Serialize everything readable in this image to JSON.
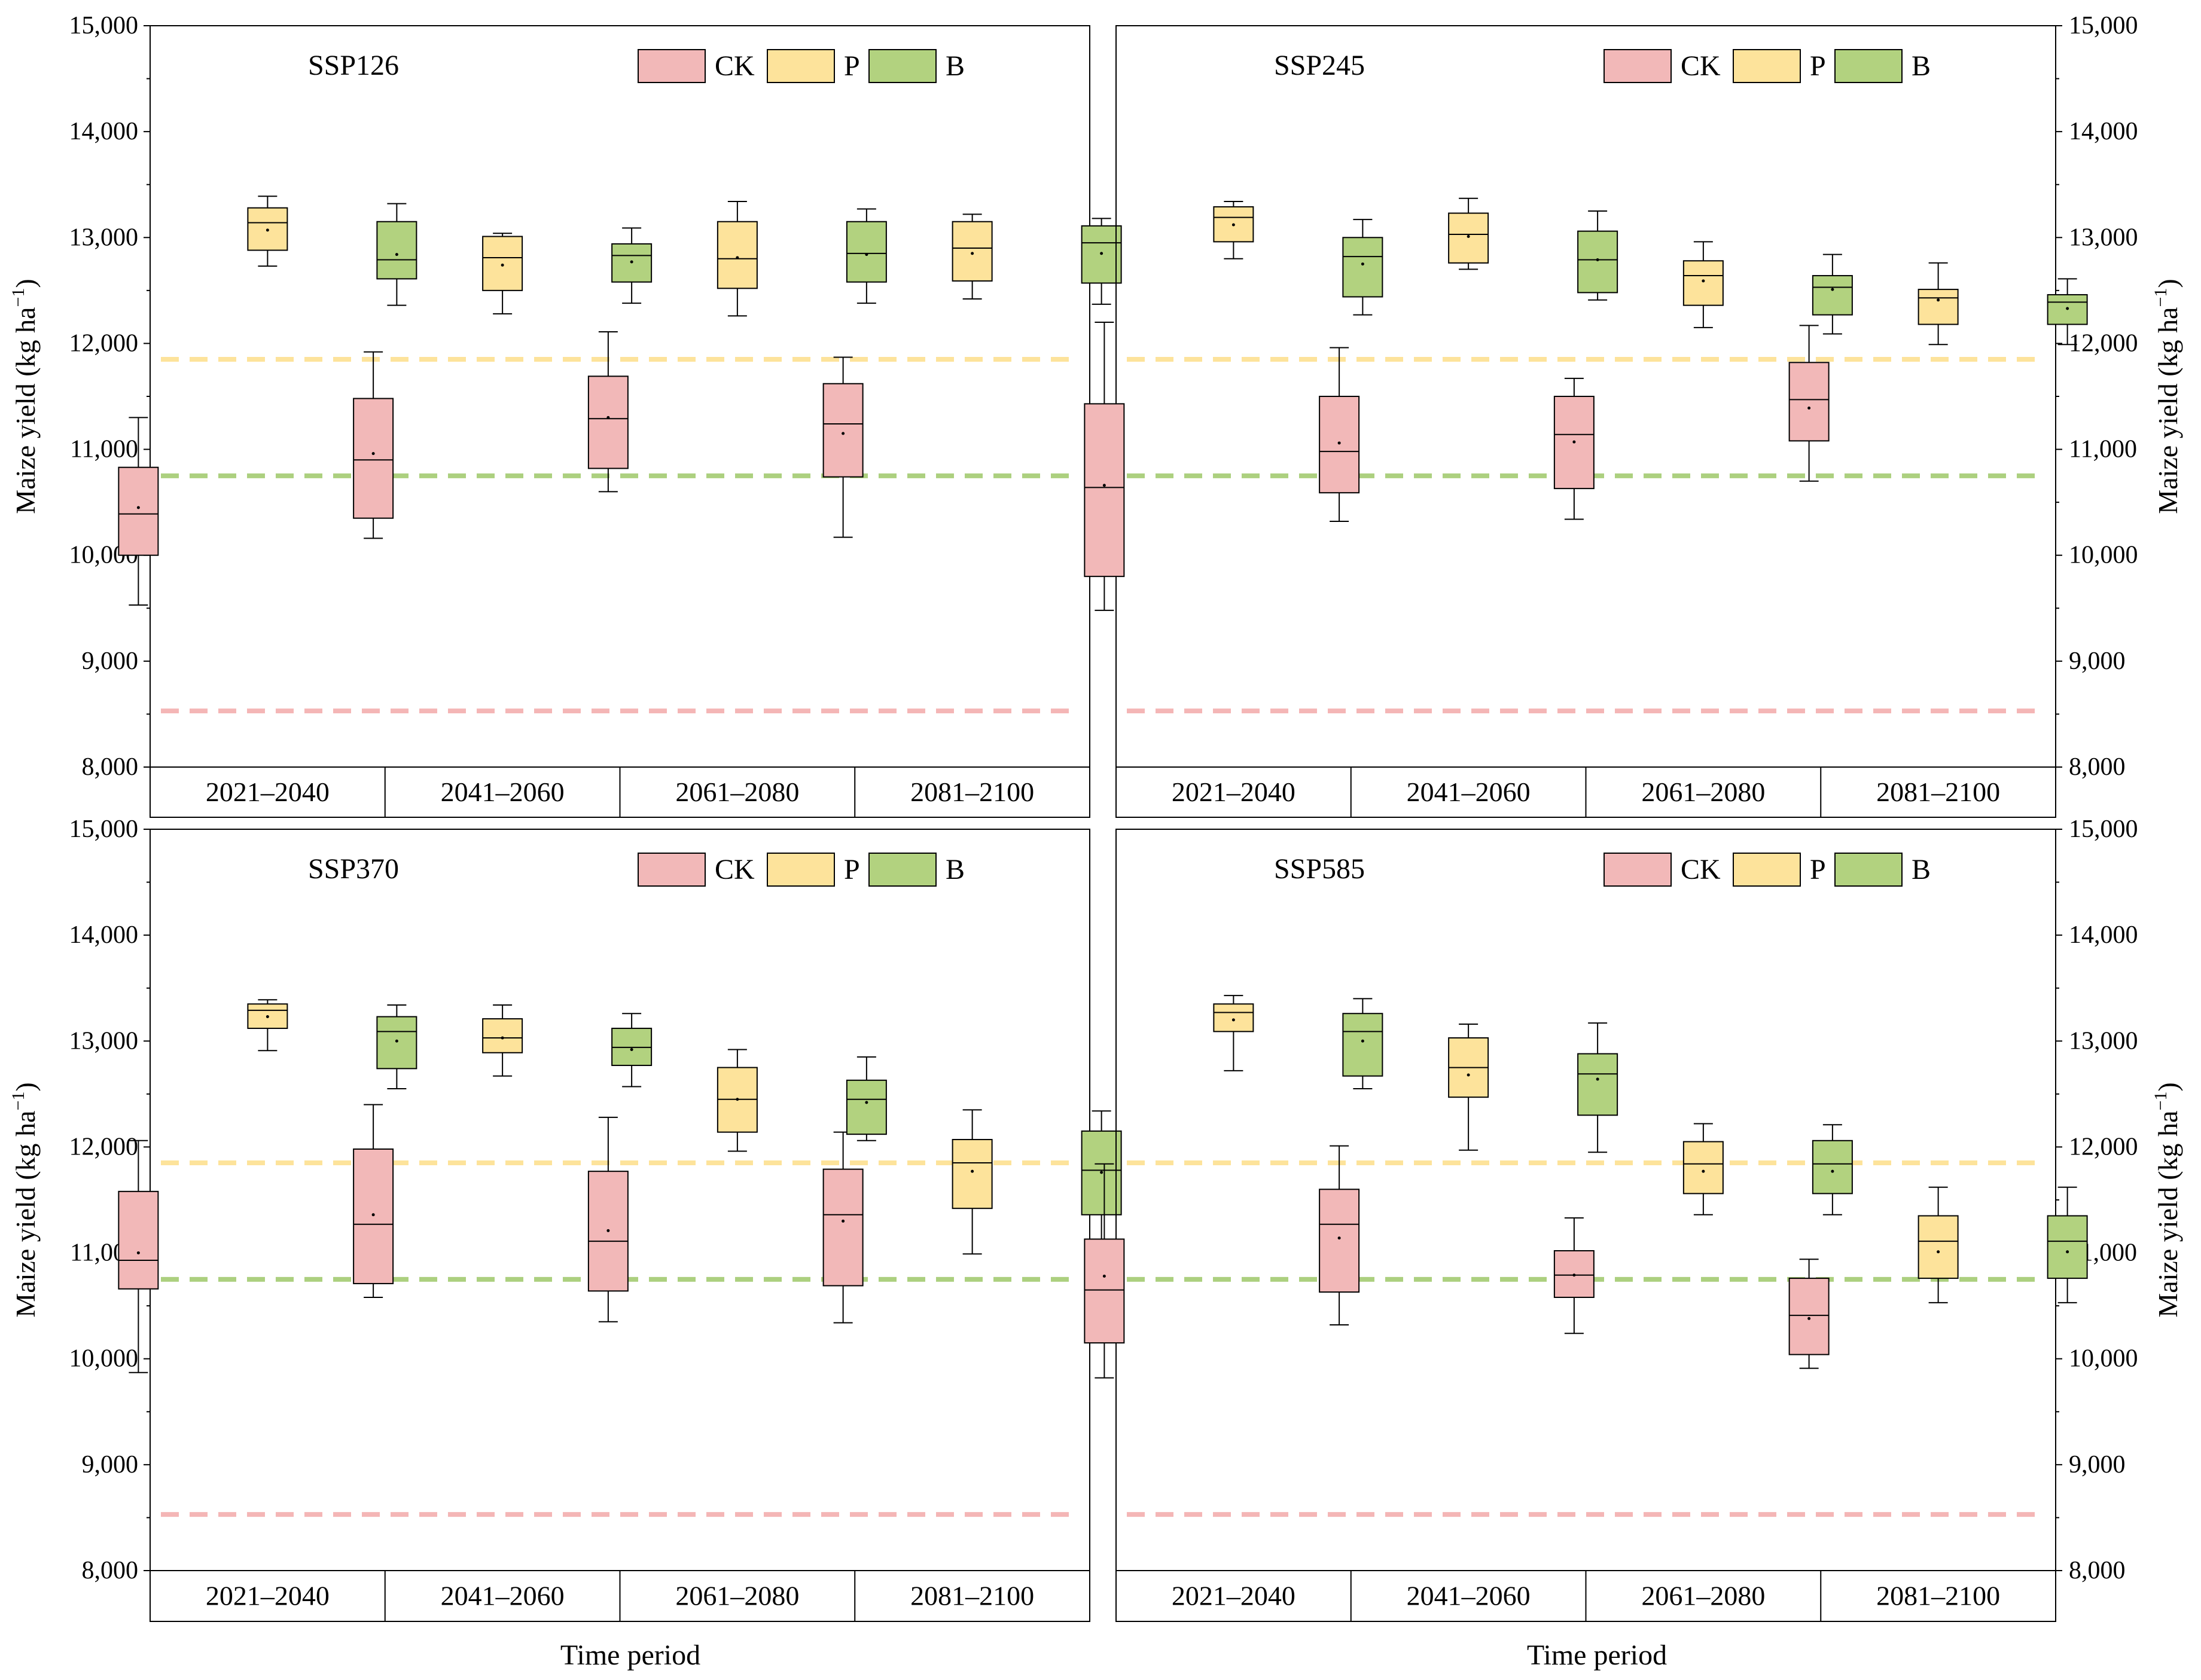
{
  "figure": {
    "ylabel_main": "Maize yield (kg ha",
    "ylabel_exp": "−1",
    "ylabel_close": ")",
    "xlabel": "Time period"
  },
  "colors": {
    "CK": "#f2b8b8",
    "P": "#fde39b",
    "B": "#b2d27f",
    "ref_CK": "#f4b6b6",
    "ref_P": "#fde39b",
    "ref_B": "#acd07f"
  },
  "chart_data": [
    {
      "type": "box",
      "title": "SSP126",
      "yaxis_side": "left",
      "ylim": [
        8000,
        15000
      ],
      "yticks": [
        8000,
        9000,
        10000,
        11000,
        12000,
        13000,
        14000,
        15000
      ],
      "ytick_labels": [
        "8,000",
        "9,000",
        "10,000",
        "11,000",
        "12,000",
        "13,000",
        "14,000",
        "15,000"
      ],
      "categories": [
        "2021–2040",
        "2041–2060",
        "2061–2080",
        "2081–2100"
      ],
      "legend": [
        "CK",
        "P",
        "B"
      ],
      "reference_lines": [
        {
          "series": "P",
          "value": 11850
        },
        {
          "series": "B",
          "value": 10750
        },
        {
          "series": "CK",
          "value": 8530
        }
      ],
      "series": [
        {
          "name": "CK",
          "boxes": [
            {
              "min": 9530,
              "q1": 10000,
              "median": 10390,
              "q3": 10830,
              "max": 11300,
              "mean": 10450
            },
            {
              "min": 10160,
              "q1": 10350,
              "median": 10900,
              "q3": 11480,
              "max": 11920,
              "mean": 10960
            },
            {
              "min": 10600,
              "q1": 10820,
              "median": 11290,
              "q3": 11690,
              "max": 12110,
              "mean": 11300
            },
            {
              "min": 10170,
              "q1": 10740,
              "median": 11240,
              "q3": 11620,
              "max": 11870,
              "mean": 11150
            }
          ]
        },
        {
          "name": "P",
          "boxes": [
            {
              "min": 12730,
              "q1": 12880,
              "median": 13140,
              "q3": 13280,
              "max": 13390,
              "mean": 13070
            },
            {
              "min": 12280,
              "q1": 12500,
              "median": 12810,
              "q3": 13010,
              "max": 13040,
              "mean": 12740
            },
            {
              "min": 12260,
              "q1": 12520,
              "median": 12800,
              "q3": 13150,
              "max": 13340,
              "mean": 12810
            },
            {
              "min": 12420,
              "q1": 12590,
              "median": 12900,
              "q3": 13150,
              "max": 13220,
              "mean": 12850
            }
          ]
        },
        {
          "name": "B",
          "boxes": [
            {
              "min": 12360,
              "q1": 12610,
              "median": 12790,
              "q3": 13150,
              "max": 13320,
              "mean": 12840
            },
            {
              "min": 12380,
              "q1": 12580,
              "median": 12830,
              "q3": 12940,
              "max": 13090,
              "mean": 12770
            },
            {
              "min": 12380,
              "q1": 12580,
              "median": 12850,
              "q3": 13150,
              "max": 13270,
              "mean": 12840
            },
            {
              "min": 12370,
              "q1": 12570,
              "median": 12950,
              "q3": 13110,
              "max": 13180,
              "mean": 12850
            }
          ]
        }
      ]
    },
    {
      "type": "box",
      "title": "SSP245",
      "yaxis_side": "right",
      "ylim": [
        8000,
        15000
      ],
      "yticks": [
        8000,
        9000,
        10000,
        11000,
        12000,
        13000,
        14000,
        15000
      ],
      "ytick_labels": [
        "8,000",
        "9,000",
        "10,000",
        "11,000",
        "12,000",
        "13,000",
        "14,000",
        "15,000"
      ],
      "categories": [
        "2021–2040",
        "2041–2060",
        "2061–2080",
        "2081–2100"
      ],
      "legend": [
        "CK",
        "P",
        "B"
      ],
      "reference_lines": [
        {
          "series": "P",
          "value": 11850
        },
        {
          "series": "B",
          "value": 10750
        },
        {
          "series": "CK",
          "value": 8530
        }
      ],
      "series": [
        {
          "name": "CK",
          "boxes": [
            {
              "min": 9480,
              "q1": 9800,
              "median": 10640,
              "q3": 11430,
              "max": 12200,
              "mean": 10660
            },
            {
              "min": 10320,
              "q1": 10590,
              "median": 10980,
              "q3": 11500,
              "max": 11960,
              "mean": 11060
            },
            {
              "min": 10340,
              "q1": 10630,
              "median": 11140,
              "q3": 11500,
              "max": 11670,
              "mean": 11070
            },
            {
              "min": 10700,
              "q1": 11080,
              "median": 11470,
              "q3": 11820,
              "max": 12170,
              "mean": 11390
            }
          ]
        },
        {
          "name": "P",
          "boxes": [
            {
              "min": 12800,
              "q1": 12960,
              "median": 13190,
              "q3": 13290,
              "max": 13340,
              "mean": 13120
            },
            {
              "min": 12700,
              "q1": 12760,
              "median": 13030,
              "q3": 13230,
              "max": 13370,
              "mean": 13010
            },
            {
              "min": 12150,
              "q1": 12360,
              "median": 12640,
              "q3": 12780,
              "max": 12960,
              "mean": 12590
            },
            {
              "min": 11990,
              "q1": 12180,
              "median": 12430,
              "q3": 12510,
              "max": 12760,
              "mean": 12410
            }
          ]
        },
        {
          "name": "B",
          "boxes": [
            {
              "min": 12270,
              "q1": 12440,
              "median": 12820,
              "q3": 13000,
              "max": 13170,
              "mean": 12750
            },
            {
              "min": 12410,
              "q1": 12480,
              "median": 12790,
              "q3": 13060,
              "max": 13250,
              "mean": 12790
            },
            {
              "min": 12090,
              "q1": 12270,
              "median": 12530,
              "q3": 12640,
              "max": 12840,
              "mean": 12510
            },
            {
              "min": 11990,
              "q1": 12180,
              "median": 12390,
              "q3": 12460,
              "max": 12610,
              "mean": 12330
            }
          ]
        }
      ]
    },
    {
      "type": "box",
      "title": "SSP370",
      "yaxis_side": "left",
      "ylim": [
        8000,
        15000
      ],
      "yticks": [
        8000,
        9000,
        10000,
        11000,
        12000,
        13000,
        14000,
        15000
      ],
      "ytick_labels": [
        "8,000",
        "9,000",
        "10,000",
        "11,000",
        "12,000",
        "13,000",
        "14,000",
        "15,000"
      ],
      "categories": [
        "2021–2040",
        "2041–2060",
        "2061–2080",
        "2081–2100"
      ],
      "legend": [
        "CK",
        "P",
        "B"
      ],
      "reference_lines": [
        {
          "series": "P",
          "value": 11850
        },
        {
          "series": "B",
          "value": 10750
        },
        {
          "series": "CK",
          "value": 8530
        }
      ],
      "series": [
        {
          "name": "CK",
          "boxes": [
            {
              "min": 9870,
              "q1": 10660,
              "median": 10930,
              "q3": 11580,
              "max": 12060,
              "mean": 11000
            },
            {
              "min": 10580,
              "q1": 10710,
              "median": 11270,
              "q3": 11980,
              "max": 12400,
              "mean": 11360
            },
            {
              "min": 10350,
              "q1": 10640,
              "median": 11110,
              "q3": 11770,
              "max": 12280,
              "mean": 11210
            },
            {
              "min": 10340,
              "q1": 10690,
              "median": 11360,
              "q3": 11790,
              "max": 12140,
              "mean": 11300
            }
          ]
        },
        {
          "name": "P",
          "boxes": [
            {
              "min": 12910,
              "q1": 13120,
              "median": 13290,
              "q3": 13350,
              "max": 13390,
              "mean": 13230
            },
            {
              "min": 12670,
              "q1": 12890,
              "median": 13030,
              "q3": 13210,
              "max": 13340,
              "mean": 13030
            },
            {
              "min": 11960,
              "q1": 12140,
              "median": 12450,
              "q3": 12750,
              "max": 12920,
              "mean": 12450
            },
            {
              "min": 10990,
              "q1": 11420,
              "median": 11850,
              "q3": 12070,
              "max": 12350,
              "mean": 11770
            }
          ]
        },
        {
          "name": "B",
          "boxes": [
            {
              "min": 12550,
              "q1": 12740,
              "median": 13090,
              "q3": 13230,
              "max": 13340,
              "mean": 13000
            },
            {
              "min": 12570,
              "q1": 12770,
              "median": 12940,
              "q3": 13120,
              "max": 13260,
              "mean": 12920
            },
            {
              "min": 12060,
              "q1": 12120,
              "median": 12450,
              "q3": 12630,
              "max": 12850,
              "mean": 12420
            },
            {
              "min": 11020,
              "q1": 11360,
              "median": 11780,
              "q3": 12150,
              "max": 12340,
              "mean": 11760
            }
          ]
        }
      ]
    },
    {
      "type": "box",
      "title": "SSP585",
      "yaxis_side": "right",
      "ylim": [
        8000,
        15000
      ],
      "yticks": [
        8000,
        9000,
        10000,
        11000,
        12000,
        13000,
        14000,
        15000
      ],
      "ytick_labels": [
        "8,000",
        "9,000",
        "10,000",
        "11,000",
        "12,000",
        "13,000",
        "14,000",
        "15,000"
      ],
      "categories": [
        "2021–2040",
        "2041–2060",
        "2061–2080",
        "2081–2100"
      ],
      "legend": [
        "CK",
        "P",
        "B"
      ],
      "reference_lines": [
        {
          "series": "P",
          "value": 11850
        },
        {
          "series": "B",
          "value": 10750
        },
        {
          "series": "CK",
          "value": 8530
        }
      ],
      "series": [
        {
          "name": "CK",
          "boxes": [
            {
              "min": 9820,
              "q1": 10150,
              "median": 10650,
              "q3": 11130,
              "max": 11840,
              "mean": 10780
            },
            {
              "min": 10320,
              "q1": 10630,
              "median": 11270,
              "q3": 11600,
              "max": 12010,
              "mean": 11140
            },
            {
              "min": 10240,
              "q1": 10580,
              "median": 10790,
              "q3": 11020,
              "max": 11330,
              "mean": 10790
            },
            {
              "min": 9910,
              "q1": 10040,
              "median": 10410,
              "q3": 10760,
              "max": 10940,
              "mean": 10380
            }
          ]
        },
        {
          "name": "P",
          "boxes": [
            {
              "min": 12720,
              "q1": 13090,
              "median": 13270,
              "q3": 13350,
              "max": 13430,
              "mean": 13200
            },
            {
              "min": 11970,
              "q1": 12470,
              "median": 12750,
              "q3": 13030,
              "max": 13160,
              "mean": 12680
            },
            {
              "min": 11360,
              "q1": 11560,
              "median": 11840,
              "q3": 12050,
              "max": 12220,
              "mean": 11770
            },
            {
              "min": 10530,
              "q1": 10760,
              "median": 11110,
              "q3": 11350,
              "max": 11620,
              "mean": 11010
            }
          ]
        },
        {
          "name": "B",
          "boxes": [
            {
              "min": 12550,
              "q1": 12670,
              "median": 13090,
              "q3": 13260,
              "max": 13400,
              "mean": 13000
            },
            {
              "min": 11950,
              "q1": 12300,
              "median": 12690,
              "q3": 12880,
              "max": 13170,
              "mean": 12640
            },
            {
              "min": 11360,
              "q1": 11560,
              "median": 11840,
              "q3": 12060,
              "max": 12210,
              "mean": 11770
            },
            {
              "min": 10530,
              "q1": 10760,
              "median": 11110,
              "q3": 11350,
              "max": 11620,
              "mean": 11010
            }
          ]
        }
      ]
    }
  ]
}
